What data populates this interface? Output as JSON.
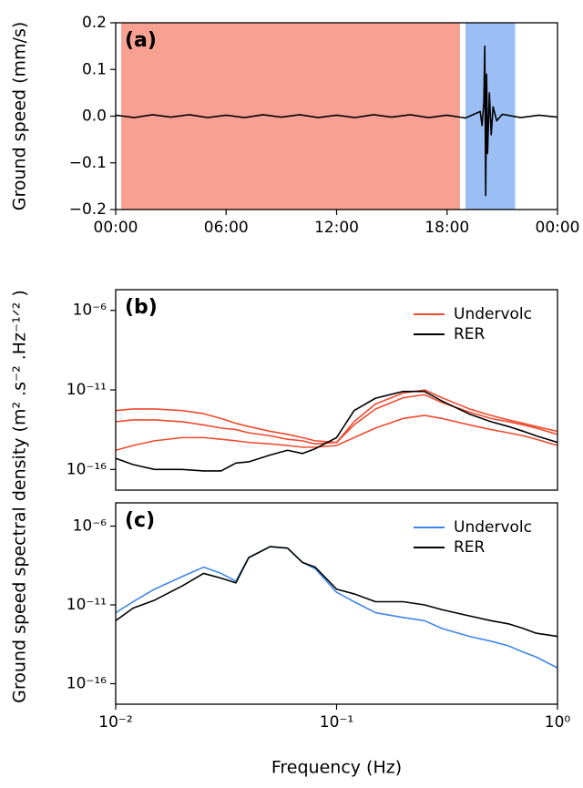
{
  "chart_data": [
    {
      "type": "line",
      "panel_label": "(a)",
      "ylabel": "Ground speed (mm/s)",
      "xlim": [
        0,
        24
      ],
      "xticks": [
        {
          "value": 0,
          "label": "00:00"
        },
        {
          "value": 6,
          "label": "06:00"
        },
        {
          "value": 12,
          "label": "12:00"
        },
        {
          "value": 18,
          "label": "18:00"
        },
        {
          "value": 24,
          "label": "00:00"
        }
      ],
      "ylim": [
        -0.2,
        0.2
      ],
      "yticks": [
        0.2,
        0.1,
        {
          "value": 0,
          "label": "0.0"
        },
        {
          "value": -0.1,
          "label": "−0.1"
        },
        {
          "value": -0.2,
          "label": "−0.2"
        }
      ],
      "spans": [
        {
          "start": 0.3,
          "end": 18.7,
          "color": "#f8a193"
        },
        {
          "start": 19.0,
          "end": 21.7,
          "color": "#9bbff5"
        }
      ],
      "x": [
        0,
        1,
        2,
        3,
        4,
        5,
        6,
        7,
        8,
        9,
        10,
        11,
        12,
        13,
        14,
        15,
        16,
        17,
        18,
        19,
        19.8,
        19.9,
        20.0,
        20.05,
        20.1,
        20.15,
        20.2,
        20.3,
        20.4,
        20.5,
        20.7,
        21,
        22,
        23,
        24
      ],
      "series": [
        {
          "name": "Ground speed",
          "color": "#000000",
          "values": [
            0.002,
            -0.003,
            0.003,
            -0.002,
            0.003,
            -0.003,
            0.002,
            -0.003,
            0.003,
            -0.002,
            0.003,
            -0.003,
            0.002,
            -0.003,
            0.003,
            -0.002,
            0.003,
            -0.003,
            0.002,
            -0.004,
            0.01,
            -0.02,
            0.03,
            0.15,
            -0.17,
            0.09,
            -0.08,
            0.05,
            -0.04,
            0.02,
            -0.01,
            0.004,
            -0.003,
            0.002,
            -0.002
          ]
        }
      ]
    },
    {
      "type": "line",
      "panel_label": "(b)",
      "yscale": "log",
      "xscale": "log",
      "ylabel": "Ground speed spectral density (m² .s⁻² .Hz⁻¹ᐟ² )",
      "legend": "upper right",
      "xlim": [
        0.01,
        1
      ],
      "ylim": [
        5e-18,
        2e-05
      ],
      "yticks": [
        {
          "value": 1e-06,
          "label": "10⁻⁶"
        },
        {
          "value": 1e-11,
          "label": "10⁻¹¹"
        },
        {
          "value": 1e-16,
          "label": "10⁻¹⁶"
        }
      ],
      "x": [
        0.01,
        0.012,
        0.015,
        0.02,
        0.025,
        0.03,
        0.035,
        0.04,
        0.05,
        0.06,
        0.07,
        0.08,
        0.1,
        0.12,
        0.15,
        0.2,
        0.25,
        0.3,
        0.4,
        0.5,
        0.6,
        0.7,
        0.8,
        1.0
      ],
      "series": [
        {
          "name": "Undervolc",
          "color": "#f04a2e",
          "values": [
            [
              5e-13,
              6.3e-13,
              6.3e-13,
              5e-13,
              3.2e-13,
              1.6e-13,
              7.9e-14,
              5e-14,
              2.5e-14,
              1.6e-14,
              1e-14,
              6.3e-15,
              5e-15,
              1e-13,
              1.3e-12,
              6.3e-12,
              1e-11,
              3.2e-12,
              6.3e-13,
              2.5e-13,
              1.3e-13,
              7.9e-14,
              5e-14,
              2.5e-14
            ],
            [
              1e-13,
              1.3e-13,
              1.3e-13,
              1e-13,
              6.3e-14,
              4e-14,
              3.2e-14,
              2e-14,
              1.3e-14,
              7.9e-15,
              6.3e-15,
              4e-15,
              5e-15,
              6.3e-14,
              6.3e-13,
              3.2e-12,
              5e-12,
              1.6e-12,
              4e-13,
              1.6e-13,
              1e-13,
              6.3e-14,
              4e-14,
              1.6e-14
            ],
            [
              1.6e-15,
              3.2e-15,
              6.3e-15,
              1e-14,
              1e-14,
              7.9e-15,
              6.3e-15,
              5e-15,
              4e-15,
              3.2e-15,
              2.5e-15,
              2.5e-15,
              3.2e-15,
              1e-14,
              4e-14,
              1.6e-13,
              2.5e-13,
              1.6e-13,
              6.3e-14,
              3.2e-14,
              2e-14,
              1.3e-14,
              7.9e-15,
              3.2e-15
            ]
          ]
        },
        {
          "name": "RER",
          "color": "#000000",
          "values": [
            5e-16,
            2e-16,
            1e-16,
            1e-16,
            8e-17,
            8e-17,
            2.5e-16,
            3e-16,
            8e-16,
            1.6e-15,
            1e-15,
            2e-15,
            1e-14,
            5e-13,
            3e-12,
            8e-12,
            8e-12,
            2e-12,
            3e-13,
            1e-13,
            5e-14,
            2.5e-14,
            1.3e-14,
            5e-15
          ]
        }
      ]
    },
    {
      "type": "line",
      "panel_label": "(c)",
      "yscale": "log",
      "xscale": "log",
      "xlabel": "Frequency (Hz)",
      "legend": "upper right",
      "xlim": [
        0.01,
        1
      ],
      "ylim": [
        5e-18,
        3e-05
      ],
      "xticks": [
        {
          "value": 0.01,
          "label": "10⁻²"
        },
        {
          "value": 0.1,
          "label": "10⁻¹"
        },
        {
          "value": 1,
          "label": "10⁰"
        }
      ],
      "yticks": [
        {
          "value": 1e-06,
          "label": "10⁻⁶"
        },
        {
          "value": 1e-11,
          "label": "10⁻¹¹"
        },
        {
          "value": 1e-16,
          "label": "10⁻¹⁶"
        }
      ],
      "x": [
        0.01,
        0.012,
        0.015,
        0.02,
        0.025,
        0.03,
        0.035,
        0.04,
        0.05,
        0.06,
        0.07,
        0.08,
        0.1,
        0.12,
        0.15,
        0.2,
        0.25,
        0.3,
        0.4,
        0.5,
        0.6,
        0.7,
        0.8,
        1.0
      ],
      "series": [
        {
          "name": "Undervolc",
          "color": "#3f86e8",
          "values": [
            3.2e-12,
            1.6e-11,
            1e-10,
            6.3e-10,
            2.5e-09,
            1e-09,
            3.2e-10,
            1e-08,
            5e-08,
            4e-08,
            5e-09,
            2e-09,
            6.3e-11,
            1.6e-11,
            3.2e-12,
            1.6e-12,
            1e-12,
            3.2e-13,
            1e-13,
            5e-14,
            2.5e-14,
            1e-14,
            5e-15,
            1e-15
          ]
        },
        {
          "name": "RER",
          "color": "#000000",
          "values": [
            1e-12,
            6.3e-12,
            2e-11,
            1.6e-10,
            1e-09,
            5e-10,
            2.5e-10,
            1e-08,
            5e-08,
            4e-08,
            5e-09,
            2.5e-09,
            1e-10,
            5e-11,
            1.6e-11,
            1.6e-11,
            1e-11,
            5e-12,
            2e-12,
            1e-12,
            6.3e-13,
            3.2e-13,
            1.6e-13,
            1e-13
          ]
        }
      ]
    }
  ]
}
